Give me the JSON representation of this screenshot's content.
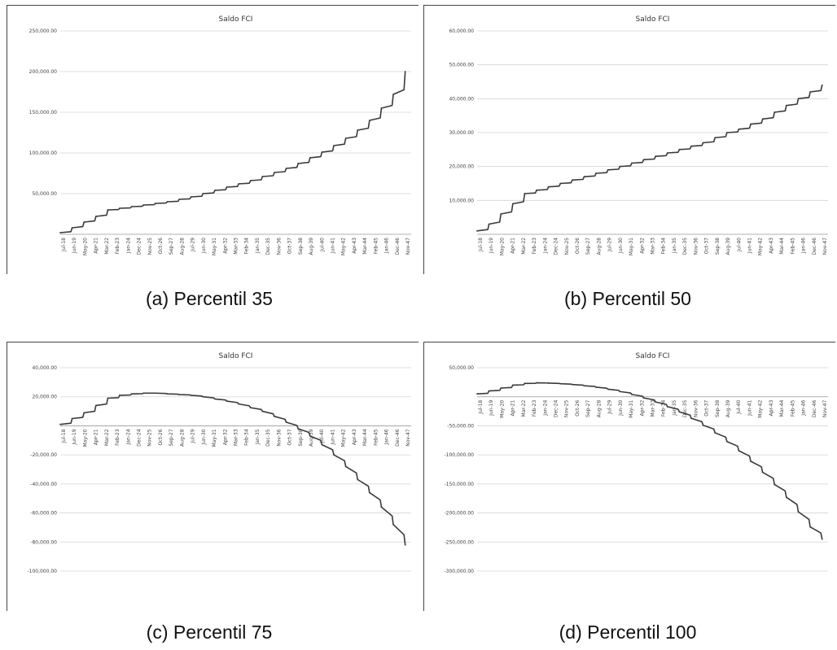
{
  "captions": [
    "(a) Percentil 35",
    "(b) Percentil 50",
    "(c) Percentil 75",
    "(d) Percentil 100"
  ],
  "chart_data": [
    {
      "type": "line",
      "title": "Saldo FCI",
      "ylim": [
        0,
        250000
      ],
      "yticks": [
        50000,
        100000,
        150000,
        200000,
        250000
      ],
      "ytick_labels": [
        "50,000.00",
        "100,000.00",
        "150,000.00",
        "200,000.00",
        "250,000.00"
      ],
      "xtick_labels": [
        "Jul-18",
        "Jun-19",
        "May-20",
        "Apr-21",
        "Mar-22",
        "Feb-23",
        "Jan-24",
        "Dec-24",
        "Nov-25",
        "Oct-26",
        "Sep-27",
        "Aug-28",
        "Jul-29",
        "Jun-30",
        "May-31",
        "Apr-32",
        "Mar-33",
        "Feb-34",
        "Jan-35",
        "Dec-35",
        "Nov-36",
        "Oct-37",
        "Sep-38",
        "Aug-39",
        "Jul-40",
        "Jun-41",
        "May-42",
        "Apr-43",
        "Mar-44",
        "Feb-45",
        "Jan-46",
        "Dec-46",
        "Nov-47"
      ],
      "x": [
        2018.5,
        2019.5,
        2020.5,
        2021.5,
        2022.5,
        2023.5,
        2024.5,
        2025.5,
        2026.5,
        2027.5,
        2028.5,
        2029.5,
        2030.5,
        2031.5,
        2032.5,
        2033.5,
        2034.5,
        2035.5,
        2036.5,
        2037.5,
        2038.5,
        2039.5,
        2040.5,
        2041.5,
        2042.5,
        2043.5,
        2044.5,
        2045.5,
        2046.5,
        2047.5
      ],
      "values": [
        2000,
        8000,
        15000,
        22000,
        30000,
        32000,
        34000,
        36000,
        38000,
        40000,
        43000,
        46000,
        50000,
        54000,
        58000,
        62000,
        66000,
        71000,
        76000,
        81000,
        87000,
        94000,
        101000,
        109000,
        118000,
        128000,
        140000,
        155000,
        172000,
        200000
      ],
      "grid": true
    },
    {
      "type": "line",
      "title": "Saldo FCI",
      "ylim": [
        0,
        60000
      ],
      "yticks": [
        10000,
        20000,
        30000,
        40000,
        50000,
        60000
      ],
      "ytick_labels": [
        "10,000.00",
        "20,000.00",
        "30,000.00",
        "40,000.00",
        "50,000.00",
        "60,000.00"
      ],
      "xtick_labels": [
        "Jul-18",
        "Jun-19",
        "May-20",
        "Apr-21",
        "Mar-22",
        "Feb-23",
        "Jan-24",
        "Dec-24",
        "Nov-25",
        "Oct-26",
        "Sep-27",
        "Aug-28",
        "Jul-29",
        "Jun-30",
        "May-31",
        "Apr-32",
        "Mar-33",
        "Feb-34",
        "Jan-35",
        "Dec-35",
        "Nov-36",
        "Oct-37",
        "Sep-38",
        "Aug-39",
        "Jul-40",
        "Jun-41",
        "May-42",
        "Apr-43",
        "Mar-44",
        "Feb-45",
        "Jan-46",
        "Dec-46",
        "Nov-47"
      ],
      "x": [
        2018.5,
        2019.5,
        2020.5,
        2021.5,
        2022.5,
        2023.5,
        2024.5,
        2025.5,
        2026.5,
        2027.5,
        2028.5,
        2029.5,
        2030.5,
        2031.5,
        2032.5,
        2033.5,
        2034.5,
        2035.5,
        2036.5,
        2037.5,
        2038.5,
        2039.5,
        2040.5,
        2041.5,
        2042.5,
        2043.5,
        2044.5,
        2045.5,
        2046.5,
        2047.5
      ],
      "values": [
        1000,
        3000,
        6000,
        9000,
        12000,
        13000,
        14000,
        15000,
        16000,
        17000,
        18000,
        19000,
        20000,
        21000,
        22000,
        23000,
        24000,
        25000,
        26000,
        27000,
        28500,
        30000,
        31000,
        32500,
        34000,
        36000,
        38000,
        40000,
        42000,
        44000
      ],
      "grid": true
    },
    {
      "type": "line",
      "title": "Saldo FCI",
      "ylim": [
        -100000,
        40000
      ],
      "yticks": [
        40000,
        20000,
        -20000,
        -40000,
        -60000,
        -80000,
        -100000
      ],
      "ytick_labels": [
        "40,000.00",
        "20,000.00",
        "-20,000.00",
        "-40,000.00",
        "-60,000.00",
        "-80,000.00",
        "-100,000.00"
      ],
      "xtick_labels": [
        "Jul-18",
        "Jun-19",
        "May-20",
        "Apr-21",
        "Mar-22",
        "Feb-23",
        "Jan-24",
        "Dec-24",
        "Nov-25",
        "Oct-26",
        "Sep-27",
        "Aug-28",
        "Jul-29",
        "Jun-30",
        "May-31",
        "Apr-32",
        "Mar-33",
        "Feb-34",
        "Jan-35",
        "Dec-35",
        "Nov-36",
        "Oct-37",
        "Sep-38",
        "Aug-39",
        "Jul-40",
        "Jun-41",
        "May-42",
        "Apr-43",
        "Mar-44",
        "Feb-45",
        "Jan-46",
        "Dec-46",
        "Nov-47"
      ],
      "x": [
        2018.5,
        2019.5,
        2020.5,
        2021.5,
        2022.5,
        2023.5,
        2024.5,
        2025.5,
        2026.5,
        2027.5,
        2028.5,
        2029.5,
        2030.5,
        2031.5,
        2032.5,
        2033.5,
        2034.5,
        2035.5,
        2036.5,
        2037.5,
        2038.5,
        2039.5,
        2040.5,
        2041.5,
        2042.5,
        2043.5,
        2044.5,
        2045.5,
        2046.5,
        2047.5
      ],
      "values": [
        1000,
        5000,
        9000,
        14000,
        19000,
        21000,
        22000,
        22500,
        22500,
        22000,
        21500,
        21000,
        20000,
        18500,
        17000,
        15000,
        12500,
        10000,
        6500,
        2500,
        -2000,
        -7000,
        -13000,
        -20000,
        -28000,
        -37000,
        -46000,
        -56000,
        -68000,
        -82000
      ],
      "grid": true
    },
    {
      "type": "line",
      "title": "Saldo FCI",
      "ylim": [
        -300000,
        50000
      ],
      "yticks": [
        50000,
        -50000,
        -100000,
        -150000,
        -200000,
        -250000,
        -300000
      ],
      "ytick_labels": [
        "50,000.00",
        "-50,000.00",
        "-100,000.00",
        "-150,000.00",
        "-200,000.00",
        "-250,000.00",
        "-300,000.00"
      ],
      "xtick_labels": [
        "Jul-18",
        "Jun-19",
        "May-20",
        "Apr-21",
        "Mar-22",
        "Feb-23",
        "Jan-24",
        "Dec-24",
        "Nov-25",
        "Oct-26",
        "Sep-27",
        "Aug-28",
        "Jul-29",
        "Jun-30",
        "May-31",
        "Apr-32",
        "Mar-33",
        "Feb-34",
        "Jan-35",
        "Dec-35",
        "Nov-36",
        "Oct-37",
        "Sep-38",
        "Aug-39",
        "Jul-40",
        "Jun-41",
        "May-42",
        "Apr-43",
        "Mar-44",
        "Feb-45",
        "Jan-46",
        "Dec-46",
        "Nov-47"
      ],
      "x": [
        2018.5,
        2019.5,
        2020.5,
        2021.5,
        2022.5,
        2023.5,
        2024.5,
        2025.5,
        2026.5,
        2027.5,
        2028.5,
        2029.5,
        2030.5,
        2031.5,
        2032.5,
        2033.5,
        2034.5,
        2035.5,
        2036.5,
        2037.5,
        2038.5,
        2039.5,
        2040.5,
        2041.5,
        2042.5,
        2043.5,
        2044.5,
        2045.5,
        2046.5,
        2047.5
      ],
      "values": [
        5000,
        10000,
        15000,
        20000,
        23000,
        24000,
        23500,
        22500,
        21000,
        19000,
        16500,
        13000,
        9000,
        4000,
        -2000,
        -9000,
        -17000,
        -26000,
        -37000,
        -49000,
        -62000,
        -77000,
        -93000,
        -111000,
        -130000,
        -151000,
        -173000,
        -198000,
        -224000,
        -245000
      ],
      "grid": true
    }
  ]
}
